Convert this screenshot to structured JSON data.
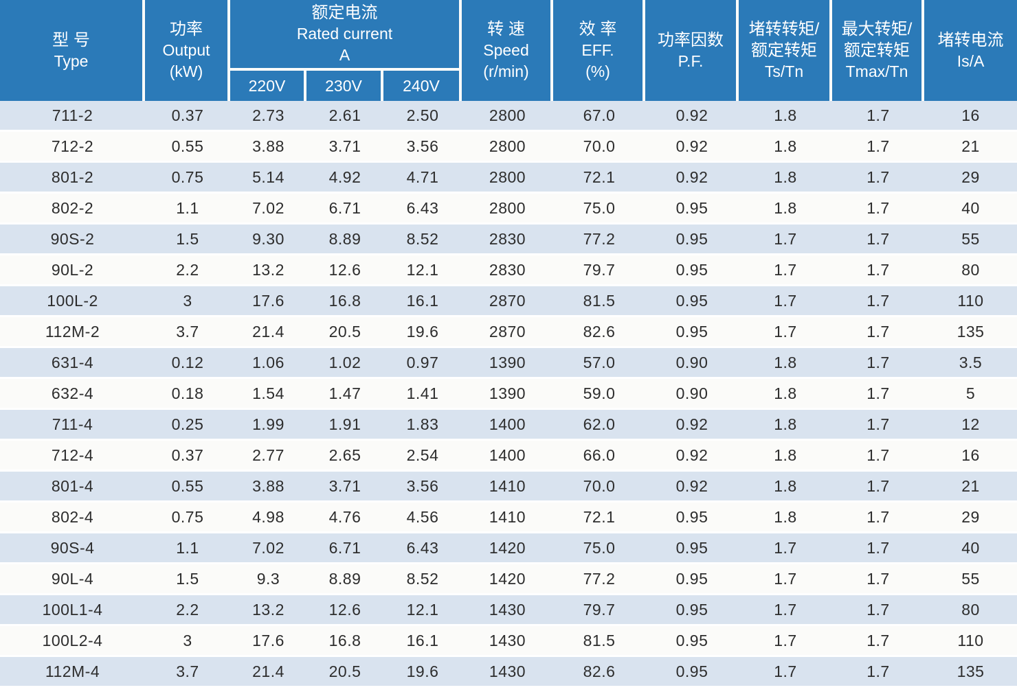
{
  "colors": {
    "header_bg": "#2b7ab8",
    "stripe_bg": "#d9e3ef",
    "plain_row_bg": "#fbfbf9",
    "separator": "#fcfcfa",
    "text": "#2d2d2d",
    "header_text": "#ffffff"
  },
  "table": {
    "header": {
      "type": {
        "zh": "型 号",
        "en": "Type"
      },
      "output": {
        "zh": "功率",
        "en": "Output",
        "unit": "(kW)"
      },
      "rated_current": {
        "zh": "额定电流",
        "en": "Rated current",
        "unit": "A"
      },
      "voltages": [
        "220V",
        "230V",
        "240V"
      ],
      "speed": {
        "zh": "转 速",
        "en": "Speed",
        "unit": "(r/min)"
      },
      "eff": {
        "zh": "效 率",
        "en": "EFF.",
        "unit": "(%)"
      },
      "pf": {
        "zh": "功率因数",
        "en": "P.F."
      },
      "ts_tn": {
        "zh1": "堵转转矩/",
        "zh2": "额定转矩",
        "en": "Ts/Tn"
      },
      "tmax_tn": {
        "zh1": "最大转矩/",
        "zh2": "额定转矩",
        "en": "Tmax/Tn"
      },
      "is_a": {
        "zh": "堵转电流",
        "en": "Is/A"
      }
    },
    "column_keys": [
      "type",
      "output-kw",
      "current-220v",
      "current-230v",
      "current-240v",
      "speed",
      "eff",
      "pf",
      "ts-tn",
      "tmax-tn",
      "is-a"
    ],
    "rows": [
      [
        "711-2",
        "0.37",
        "2.73",
        "2.61",
        "2.50",
        "2800",
        "67.0",
        "0.92",
        "1.8",
        "1.7",
        "16"
      ],
      [
        "712-2",
        "0.55",
        "3.88",
        "3.71",
        "3.56",
        "2800",
        "70.0",
        "0.92",
        "1.8",
        "1.7",
        "21"
      ],
      [
        "801-2",
        "0.75",
        "5.14",
        "4.92",
        "4.71",
        "2800",
        "72.1",
        "0.92",
        "1.8",
        "1.7",
        "29"
      ],
      [
        "802-2",
        "1.1",
        "7.02",
        "6.71",
        "6.43",
        "2800",
        "75.0",
        "0.95",
        "1.8",
        "1.7",
        "40"
      ],
      [
        "90S-2",
        "1.5",
        "9.30",
        "8.89",
        "8.52",
        "2830",
        "77.2",
        "0.95",
        "1.7",
        "1.7",
        "55"
      ],
      [
        "90L-2",
        "2.2",
        "13.2",
        "12.6",
        "12.1",
        "2830",
        "79.7",
        "0.95",
        "1.7",
        "1.7",
        "80"
      ],
      [
        "100L-2",
        "3",
        "17.6",
        "16.8",
        "16.1",
        "2870",
        "81.5",
        "0.95",
        "1.7",
        "1.7",
        "110"
      ],
      [
        "112M-2",
        "3.7",
        "21.4",
        "20.5",
        "19.6",
        "2870",
        "82.6",
        "0.95",
        "1.7",
        "1.7",
        "135"
      ],
      [
        "631-4",
        "0.12",
        "1.06",
        "1.02",
        "0.97",
        "1390",
        "57.0",
        "0.90",
        "1.8",
        "1.7",
        "3.5"
      ],
      [
        "632-4",
        "0.18",
        "1.54",
        "1.47",
        "1.41",
        "1390",
        "59.0",
        "0.90",
        "1.8",
        "1.7",
        "5"
      ],
      [
        "711-4",
        "0.25",
        "1.99",
        "1.91",
        "1.83",
        "1400",
        "62.0",
        "0.92",
        "1.8",
        "1.7",
        "12"
      ],
      [
        "712-4",
        "0.37",
        "2.77",
        "2.65",
        "2.54",
        "1400",
        "66.0",
        "0.92",
        "1.8",
        "1.7",
        "16"
      ],
      [
        "801-4",
        "0.55",
        "3.88",
        "3.71",
        "3.56",
        "1410",
        "70.0",
        "0.92",
        "1.8",
        "1.7",
        "21"
      ],
      [
        "802-4",
        "0.75",
        "4.98",
        "4.76",
        "4.56",
        "1410",
        "72.1",
        "0.95",
        "1.8",
        "1.7",
        "29"
      ],
      [
        "90S-4",
        "1.1",
        "7.02",
        "6.71",
        "6.43",
        "1420",
        "75.0",
        "0.95",
        "1.7",
        "1.7",
        "40"
      ],
      [
        "90L-4",
        "1.5",
        "9.3",
        "8.89",
        "8.52",
        "1420",
        "77.2",
        "0.95",
        "1.7",
        "1.7",
        "55"
      ],
      [
        "100L1-4",
        "2.2",
        "13.2",
        "12.6",
        "12.1",
        "1430",
        "79.7",
        "0.95",
        "1.7",
        "1.7",
        "80"
      ],
      [
        "100L2-4",
        "3",
        "17.6",
        "16.8",
        "16.1",
        "1430",
        "81.5",
        "0.95",
        "1.7",
        "1.7",
        "110"
      ],
      [
        "112M-4",
        "3.7",
        "21.4",
        "20.5",
        "19.6",
        "1430",
        "82.6",
        "0.95",
        "1.7",
        "1.7",
        "135"
      ]
    ]
  }
}
